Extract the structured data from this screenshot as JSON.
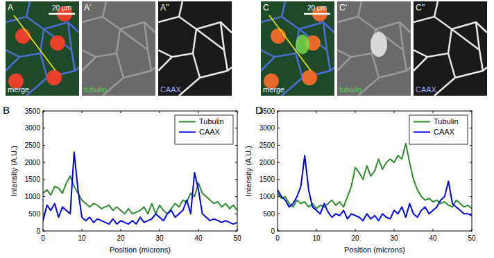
{
  "images": [
    {
      "panel": "A",
      "caption": "merge",
      "scale_bar": "20 μm"
    },
    {
      "panel": "A'",
      "caption": "tubulin"
    },
    {
      "panel": "A''",
      "caption": "CAAX"
    },
    {
      "panel": "C",
      "caption": "merge",
      "scale_bar": "20 μm"
    },
    {
      "panel": "C'",
      "caption": "tubulin"
    },
    {
      "panel": "C''",
      "caption": "CAAX"
    }
  ],
  "chart_data": [
    {
      "type": "line",
      "title": "B",
      "x_label": "Position (microns)",
      "y_label": "Intensity (A.U.)",
      "x": [
        0,
        1,
        2,
        3,
        4,
        5,
        6,
        7,
        8,
        9,
        10,
        11,
        12,
        13,
        14,
        15,
        16,
        17,
        18,
        19,
        20,
        21,
        22,
        23,
        24,
        25,
        26,
        27,
        28,
        29,
        30,
        31,
        32,
        33,
        34,
        35,
        36,
        37,
        38,
        39,
        40,
        41,
        42,
        43,
        44,
        45,
        46,
        47,
        48,
        49,
        50
      ],
      "series": [
        {
          "name": "Tubulin",
          "color": "#2e8b2e",
          "values": [
            1100,
            1200,
            1050,
            1300,
            1250,
            1100,
            1400,
            1600,
            1300,
            1100,
            900,
            800,
            700,
            800,
            750,
            650,
            700,
            750,
            600,
            700,
            600,
            500,
            650,
            500,
            550,
            600,
            700,
            500,
            800,
            500,
            750,
            600,
            500,
            650,
            800,
            700,
            900,
            850,
            1100,
            1000,
            1400,
            1100,
            1000,
            900,
            800,
            850,
            700,
            800,
            650,
            750,
            600
          ]
        },
        {
          "name": "CAAX",
          "color": "#0000e0",
          "values": [
            300,
            750,
            600,
            800,
            400,
            700,
            600,
            500,
            2300,
            1200,
            400,
            300,
            400,
            250,
            350,
            300,
            250,
            200,
            350,
            200,
            300,
            250,
            200,
            300,
            200,
            400,
            250,
            300,
            350,
            500,
            400,
            300,
            500,
            600,
            400,
            500,
            600,
            900,
            500,
            1700,
            1200,
            500,
            400,
            300,
            350,
            300,
            250,
            300,
            250,
            200,
            250
          ]
        }
      ],
      "xlim": [
        0,
        50
      ],
      "xticks": [
        0,
        10,
        20,
        30,
        40,
        50
      ],
      "ylim": [
        0,
        3500
      ],
      "yticks": [
        0,
        500,
        1000,
        1500,
        2000,
        2500,
        3000,
        3500
      ],
      "legend": "upper right",
      "grid": false
    },
    {
      "type": "line",
      "title": "D",
      "x_label": "Position (microns)",
      "y_label": "Intensity (A.U.)",
      "x": [
        0,
        1,
        2,
        3,
        4,
        5,
        6,
        7,
        8,
        9,
        10,
        11,
        12,
        13,
        14,
        15,
        16,
        17,
        18,
        19,
        20,
        21,
        22,
        23,
        24,
        25,
        26,
        27,
        28,
        29,
        30,
        31,
        32,
        33,
        34,
        35,
        36,
        37,
        38,
        39,
        40,
        41,
        42,
        43,
        44,
        45,
        46,
        47,
        48,
        49,
        50
      ],
      "series": [
        {
          "name": "Tubulin",
          "color": "#2e8b2e",
          "values": [
            1100,
            950,
            1000,
            800,
            700,
            900,
            800,
            850,
            700,
            800,
            650,
            750,
            700,
            800,
            900,
            750,
            850,
            700,
            1000,
            1300,
            1850,
            1700,
            1500,
            1900,
            1600,
            1750,
            2100,
            1800,
            2000,
            2100,
            2000,
            2200,
            2100,
            2550,
            2000,
            1500,
            1200,
            1000,
            900,
            950,
            850,
            900,
            800,
            850,
            750,
            700,
            900,
            800,
            700,
            750,
            650
          ]
        },
        {
          "name": "CAAX",
          "color": "#0000e0",
          "values": [
            1200,
            1000,
            900,
            700,
            800,
            1000,
            1300,
            2200,
            1200,
            700,
            600,
            500,
            800,
            550,
            400,
            500,
            450,
            600,
            350,
            500,
            450,
            400,
            300,
            500,
            350,
            450,
            300,
            500,
            400,
            350,
            600,
            500,
            700,
            400,
            800,
            500,
            400,
            600,
            700,
            500,
            600,
            700,
            900,
            1000,
            1450,
            800,
            700,
            600,
            500,
            500,
            450
          ]
        }
      ],
      "xlim": [
        0,
        50
      ],
      "xticks": [
        0,
        10,
        20,
        30,
        40,
        50
      ],
      "ylim": [
        0,
        3500
      ],
      "yticks": [
        0,
        500,
        1000,
        1500,
        2000,
        2500,
        3000,
        3500
      ],
      "legend": "upper right",
      "grid": false
    }
  ]
}
